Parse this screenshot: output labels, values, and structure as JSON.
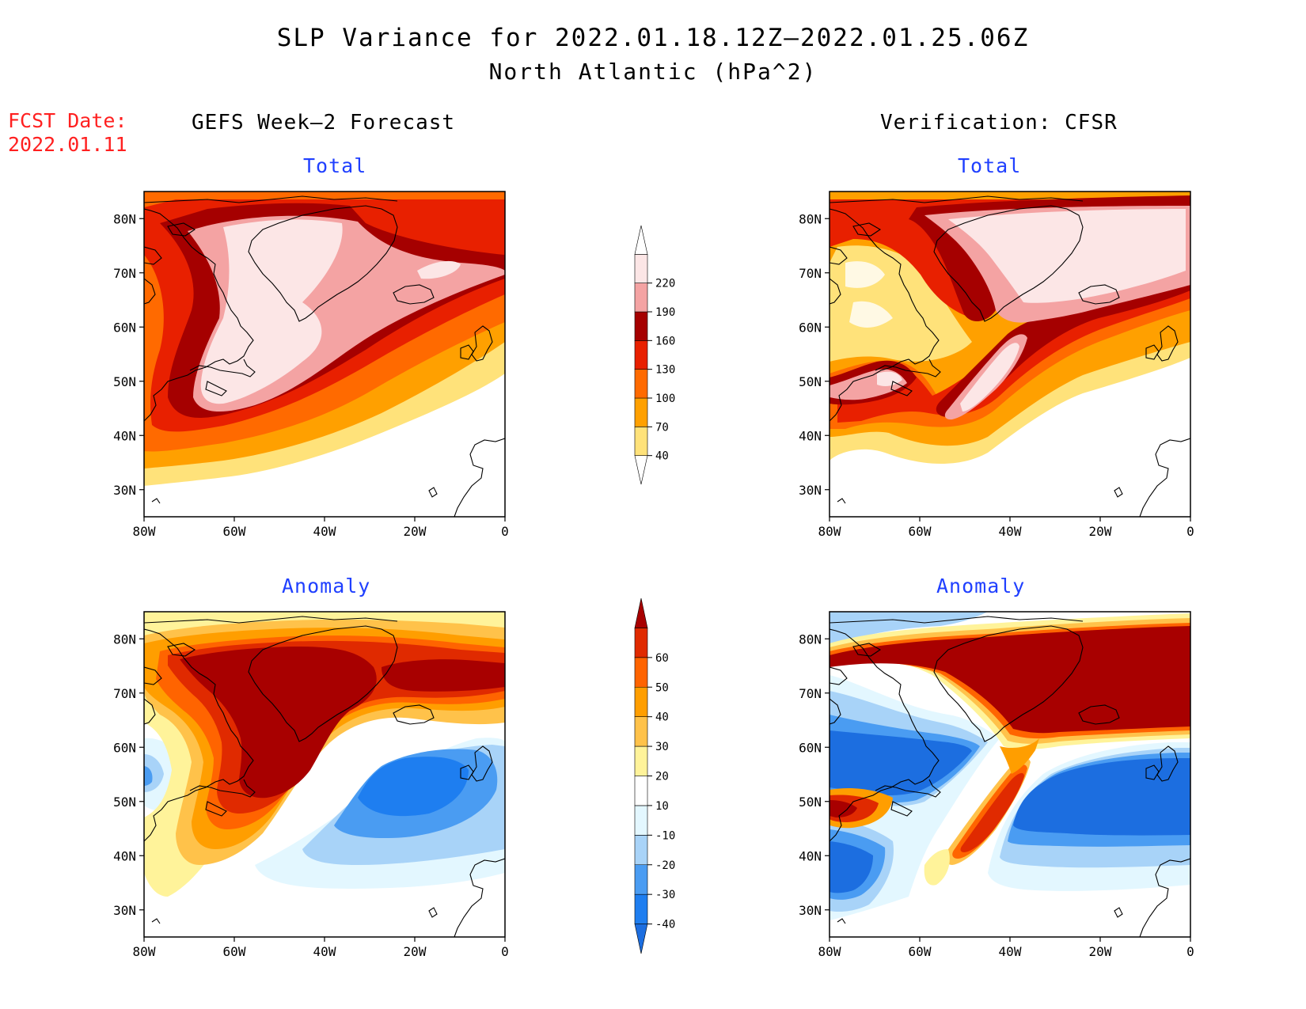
{
  "title": "SLP Variance for 2022.01.18.12Z–2022.01.25.06Z",
  "subtitle": "North Atlantic (hPa^2)",
  "fcst_date_label": "FCST Date:",
  "fcst_date_value": "2022.01.11",
  "columns": {
    "left": "GEFS Week–2 Forecast",
    "right": "Verification: CFSR"
  },
  "panels": [
    {
      "id": "forecast-total",
      "title": "Total"
    },
    {
      "id": "verification-total",
      "title": "Total"
    },
    {
      "id": "forecast-anomaly",
      "title": "Anomaly"
    },
    {
      "id": "verification-anomaly",
      "title": "Anomaly"
    }
  ],
  "axes": {
    "lat_labels": [
      "30N",
      "40N",
      "50N",
      "60N",
      "70N",
      "80N"
    ],
    "lon_labels": [
      "80W",
      "60W",
      "40W",
      "20W",
      "0"
    ],
    "lat_range": [
      25,
      85
    ],
    "lon_range": [
      -80,
      0
    ]
  },
  "colorbars": {
    "total": {
      "levels": [
        "40",
        "70",
        "100",
        "130",
        "160",
        "190",
        "220"
      ],
      "colors": [
        "#ffe27a",
        "#ffa000",
        "#ff6a00",
        "#e82000",
        "#a50000",
        "#f4a3a3",
        "#fce6e6"
      ]
    },
    "anomaly": {
      "levels": [
        "-40",
        "-30",
        "-20",
        "-10",
        "10",
        "20",
        "30",
        "40",
        "50",
        "60"
      ],
      "colors": [
        "#1c6ee0",
        "#1e7ef0",
        "#4a9cf2",
        "#a8d3f8",
        "#e3f7ff",
        "#ffffff",
        "#fff39a",
        "#ffc24a",
        "#ff9e00",
        "#ff6400",
        "#e02a00",
        "#a80000"
      ]
    }
  }
}
